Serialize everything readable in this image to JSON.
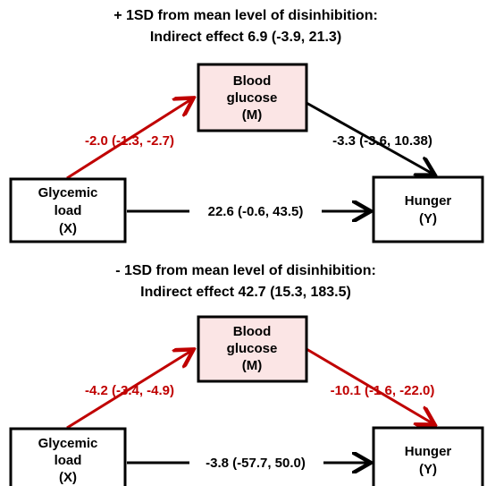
{
  "panels": [
    {
      "title": [
        "+ 1SD from mean level of disinhibition:",
        "Indirect effect 6.9 (-3.9, 21.3)"
      ],
      "nodes": [
        {
          "label": [
            "Blood",
            "glucose",
            "(M)"
          ]
        },
        {
          "label": [
            "Glycemic",
            "load",
            "(X)"
          ]
        },
        {
          "label": [
            "Hunger",
            "(Y)"
          ]
        }
      ],
      "edge_labels": [
        "-2.0 (-1.3, -2.7)",
        "-3.3 (-3.6, 10.38)",
        "22.6 (-0.6, 43.5)"
      ]
    },
    {
      "title": [
        "- 1SD from mean level of disinhibition:",
        "Indirect effect 42.7 (15.3, 183.5)"
      ],
      "nodes": [
        {
          "label": [
            "Blood",
            "glucose",
            "(M)"
          ]
        },
        {
          "label": [
            "Glycemic",
            "load",
            "(X)"
          ]
        },
        {
          "label": [
            "Hunger",
            "(Y)"
          ]
        }
      ],
      "edge_labels": [
        "-4.2 (-3.4, -4.9)",
        "-10.1 (-1.6, -22.0)",
        "-3.8 (-57.7, 50.0)"
      ]
    }
  ]
}
